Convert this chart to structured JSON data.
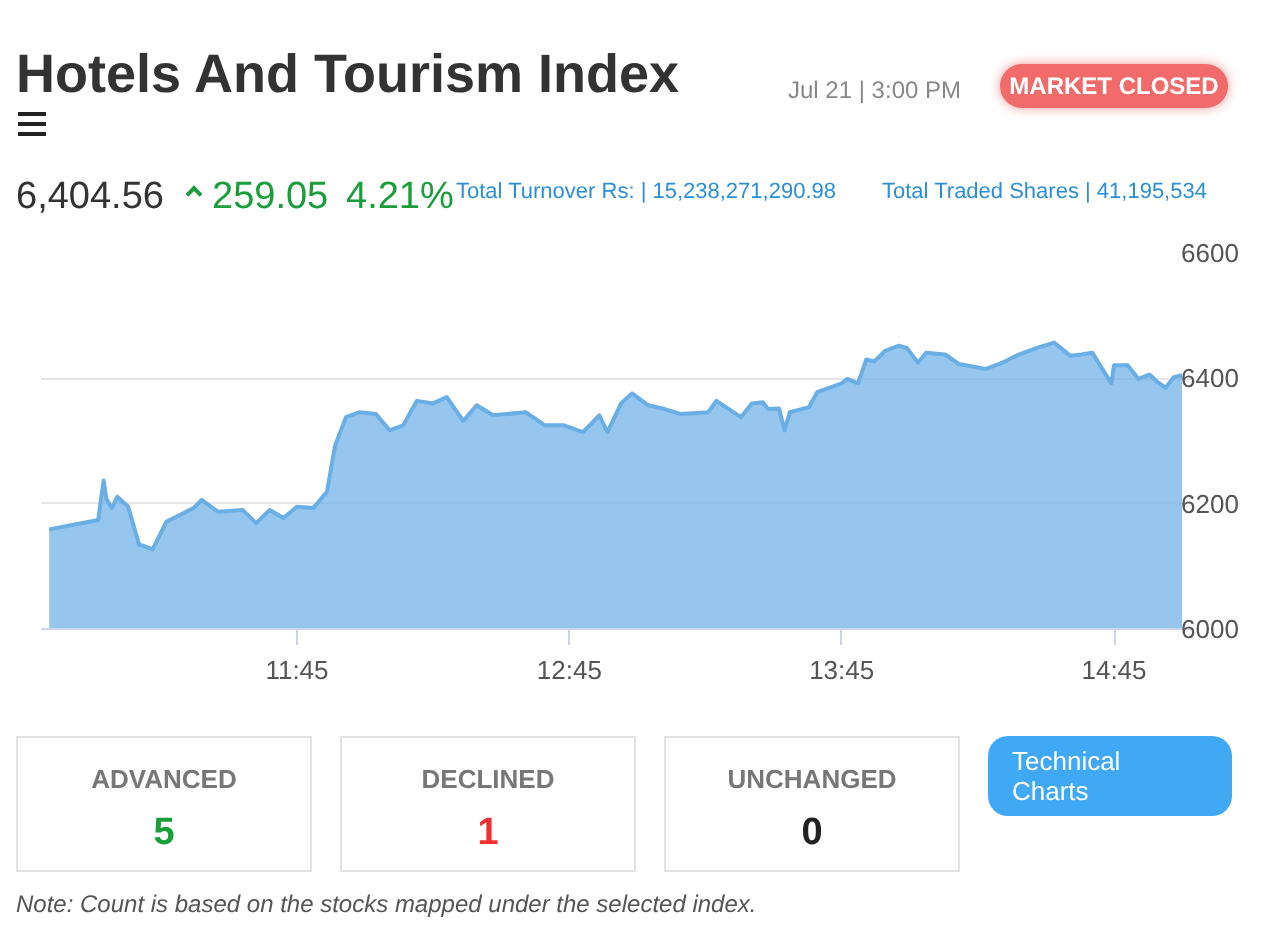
{
  "chart_data": {
    "type": "area",
    "title": "Hotels And Tourism Index",
    "annotations": [
      "Jul 21 | 3:00 PM",
      "MARKET CLOSED",
      "6,404.56",
      "259.05",
      "4.21%",
      "Total Turnover Rs: | 15,238,271,290.98",
      "Total Traded Shares | 41,195,534",
      "ADVANCED",
      "5",
      "DECLINED",
      "1",
      "UNCHANGED",
      "0",
      "Technical Charts",
      "Note: Count is based on the stocks mapped under the selected index."
    ],
    "x": [
      10.84,
      11.02,
      11.04,
      11.05,
      11.07,
      11.09,
      11.13,
      11.17,
      11.22,
      11.27,
      11.32,
      11.37,
      11.4,
      11.46,
      11.55,
      11.6,
      11.65,
      11.7,
      11.75,
      11.81,
      11.86,
      11.89,
      11.93,
      11.98,
      12.04,
      12.09,
      12.14,
      12.19,
      12.25,
      12.3,
      12.36,
      12.41,
      12.47,
      12.59,
      12.66,
      12.73,
      12.8,
      12.86,
      12.89,
      12.94,
      12.98,
      13.04,
      13.1,
      13.16,
      13.26,
      13.29,
      13.38,
      13.42,
      13.46,
      13.48,
      13.52,
      13.54,
      13.56,
      13.63,
      13.66,
      13.75,
      13.77,
      13.81,
      13.84,
      13.87,
      13.91,
      13.96,
      13.99,
      14.03,
      14.06,
      14.13,
      14.18,
      14.28,
      14.34,
      14.4,
      14.47,
      14.53,
      14.59,
      14.63,
      14.67,
      14.74,
      14.75,
      14.8,
      14.84,
      14.88,
      14.91,
      14.94,
      14.97,
      15.0
    ],
    "series": [
      {
        "color": "#6aaee6",
        "values": [
          6159,
          6174,
          6237,
          6208,
          6193,
          6211,
          6195,
          6135,
          6127,
          6171,
          6182,
          6193,
          6206,
          6187,
          6190,
          6169,
          6190,
          6177,
          6195,
          6193,
          6219,
          6293,
          6338,
          6346,
          6343,
          6317,
          6325,
          6364,
          6360,
          6370,
          6332,
          6357,
          6341,
          6346,
          6325,
          6325,
          6314,
          6341,
          6314,
          6360,
          6376,
          6357,
          6351,
          6343,
          6346,
          6364,
          6338,
          6360,
          6362,
          6351,
          6352,
          6317,
          6346,
          6354,
          6378,
          6392,
          6399,
          6392,
          6430,
          6427,
          6444,
          6452,
          6448,
          6425,
          6441,
          6438,
          6423,
          6415,
          6425,
          6438,
          6449,
          6457,
          6436,
          6438,
          6441,
          6392,
          6421,
          6421,
          6399,
          6406,
          6394,
          6385,
          6402,
          6405
        ]
      }
    ],
    "xlim": [
      10.81,
      15.04
    ],
    "ylim": [
      6000,
      6600
    ],
    "xticks": [
      {
        "value": 11.75,
        "label": "11:45"
      },
      {
        "value": 12.75,
        "label": "12:45"
      },
      {
        "value": 13.75,
        "label": "13:45"
      },
      {
        "value": 14.75,
        "label": "14:45"
      }
    ],
    "yticks": [
      6000,
      6200,
      6400,
      6600
    ],
    "grid": "y"
  }
}
